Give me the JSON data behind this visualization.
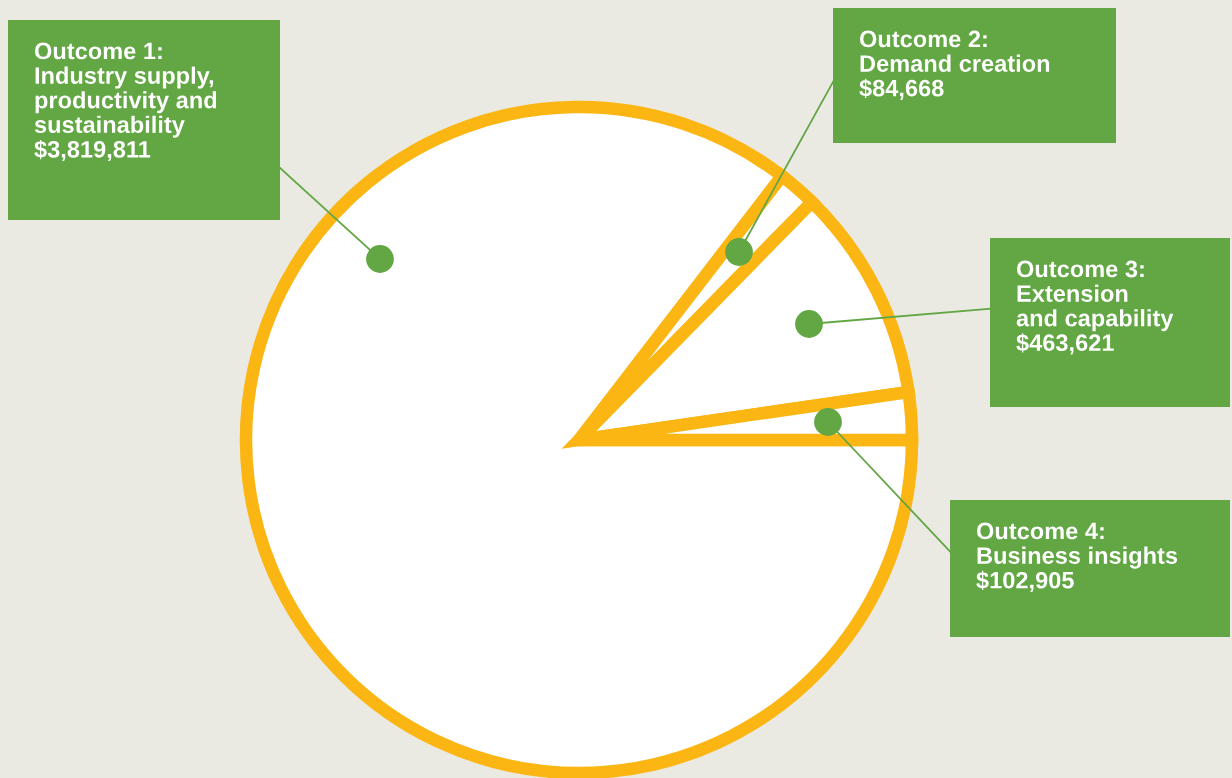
{
  "chart_data": {
    "type": "pie",
    "categories": [
      "Outcome 1:\nIndustry supply,\nproductivity and\nsustainability",
      "Outcome 2:\nDemand creation",
      "Outcome 3:\nExtension\nand capability",
      "Outcome 4:\nBusiness insights"
    ],
    "values": [
      3819811,
      84668,
      463621,
      102905
    ],
    "value_labels": [
      "$3,819,811",
      "$84,668",
      "$463,621",
      "$102,905"
    ],
    "colors": [
      "#ffffff",
      "#ffffff",
      "#ffffff",
      "#ffffff"
    ]
  }
}
